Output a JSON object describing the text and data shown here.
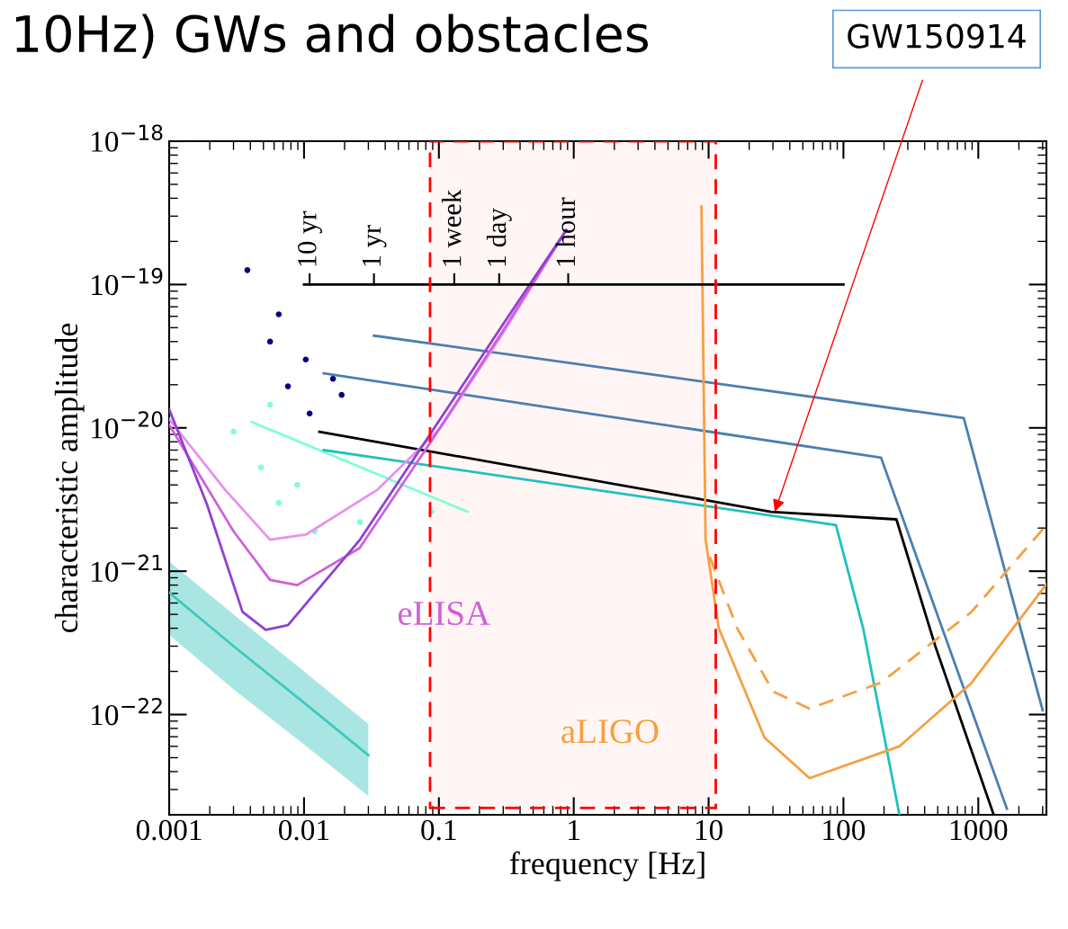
{
  "chart_data": {
    "type": "line",
    "title": "10Hz) GWs and obstacles",
    "xlabel": "frequency [Hz]",
    "ylabel": "characteristic amplitude",
    "log": "xy",
    "xlim": [
      0.001,
      3200
    ],
    "ylim": [
      2e-23,
      1e-18
    ],
    "xticks": [
      0.001,
      0.01,
      0.1,
      1,
      10,
      100,
      1000
    ],
    "yticks": [
      {
        "value": 1e-18,
        "label": "10$^{−18}$"
      },
      {
        "value": 1e-19,
        "label": "10$^{−19}$"
      },
      {
        "value": 1e-20,
        "label": "10$^{−20}$"
      },
      {
        "value": 1e-21,
        "label": "10$^{−21}$"
      },
      {
        "value": 1e-22,
        "label": "10$^{−22}$"
      }
    ],
    "grid": false,
    "series": [
      {
        "type": "scatter",
        "color": "#7fffd4",
        "x": [
          0.003,
          0.0048,
          0.0065,
          0.012,
          0.0056,
          0.0089,
          0.026,
          0.088
        ],
        "values": [
          9.4e-21,
          5.3e-21,
          3e-21,
          1.9e-21,
          1.45e-20,
          4e-21,
          2.2e-21,
          2.6e-21
        ]
      },
      {
        "type": "scatter",
        "color": "#000080",
        "x": [
          0.0038,
          0.0065,
          0.0103,
          0.0076,
          0.0164,
          0.011,
          0.019,
          0.0056
        ],
        "values": [
          1.26e-19,
          6.2e-20,
          3e-20,
          1.95e-20,
          2.2e-20,
          1.26e-20,
          1.7e-20,
          4e-20
        ]
      },
      {
        "color": "#7fffd4",
        "x": [
          0.0041,
          0.163
        ],
        "values": [
          1.1e-20,
          2.6e-21
        ]
      },
      {
        "color": "#20c0c0",
        "x": [
          0.014,
          88,
          140,
          260
        ],
        "values": [
          7e-21,
          2.1e-21,
          4e-22,
          2e-23
        ]
      },
      {
        "color": "#4a7fb0",
        "x": [
          0.014,
          190,
          1630
        ],
        "values": [
          2.4e-20,
          6.2e-21,
          2.2e-23
        ]
      },
      {
        "color": "#4a7fb0",
        "x": [
          0.033,
          780,
          3000
        ],
        "values": [
          4.4e-20,
          1.17e-20,
          1.07e-22
        ]
      },
      {
        "color": "#000000",
        "x": [
          0.013,
          29,
          247,
          480,
          1300
        ],
        "values": [
          9.4e-21,
          2.6e-21,
          2.3e-21,
          3e-22,
          2e-23
        ]
      },
      {
        "color": "#40c8c0",
        "x": [
          0.001,
          0.003,
          0.01,
          0.03
        ],
        "values": [
          7.1e-22,
          3e-22,
          1.21e-22,
          5.2e-23
        ],
        "lower": [
          3.6e-22,
          1.5e-22,
          6.2e-23,
          2.7e-23
        ],
        "upper": [
          1.17e-21,
          5e-22,
          2e-22,
          8.6e-23
        ]
      },
      {
        "color": "#e890f0",
        "x": [
          0.001,
          0.0026,
          0.0056,
          0.0103,
          0.035,
          0.103,
          0.3,
          0.88
        ],
        "values": [
          1.15e-20,
          3.7e-21,
          1.66e-21,
          1.8e-21,
          3.7e-21,
          1e-20,
          4.6e-20,
          2.4e-19
        ]
      },
      {
        "name": "eLISA",
        "color": "#d060d8",
        "x": [
          0.001,
          0.003,
          0.0056,
          0.0089,
          0.0258,
          0.088,
          0.3,
          0.88
        ],
        "values": [
          1.05e-20,
          1.9e-21,
          8.7e-22,
          8e-22,
          1.45e-21,
          8.1e-21,
          4.8e-20,
          2.4e-19
        ]
      },
      {
        "color": "#9040d0",
        "x": [
          0.001,
          0.0019,
          0.0035,
          0.0052,
          0.0076,
          0.026,
          0.088,
          0.3,
          0.88
        ],
        "values": [
          1.35e-20,
          2.95e-21,
          5.2e-22,
          3.9e-22,
          4.2e-22,
          1.66e-21,
          9.3e-21,
          5.3e-20,
          2.4e-19
        ]
      },
      {
        "name": "aLIGO",
        "color": "#f5a040",
        "x": [
          8.85,
          9.5,
          11.9,
          26,
          56,
          260,
          890,
          3200
        ],
        "values": [
          3.5e-19,
          1.66e-21,
          4e-22,
          6.9e-23,
          3.6e-23,
          6e-23,
          1.66e-22,
          8.1e-22
        ]
      },
      {
        "color": "#f5a040",
        "line_style": "dashed",
        "x": [
          10.2,
          16.3,
          30,
          56,
          190,
          890,
          3200
        ],
        "values": [
          1.26e-21,
          4e-22,
          1.45e-22,
          1.1e-22,
          1.67e-22,
          5.2e-22,
          2.1e-21
        ]
      },
      {
        "color": "#000000",
        "x": [
          0.01,
          100
        ],
        "values": [
          1e-19,
          1e-19
        ]
      }
    ],
    "bands": [
      {
        "axis": "x",
        "from": 0.086,
        "to": 11.3,
        "color": "#ff0000"
      }
    ],
    "annotations": [
      {
        "text": "10 yr",
        "x": 0.011,
        "y": 1e-19
      },
      {
        "text": "1 yr",
        "x": 0.033,
        "y": 1e-19
      },
      {
        "text": "1 week",
        "x": 0.13,
        "y": 1e-19
      },
      {
        "text": "1 day",
        "x": 0.28,
        "y": 1e-19
      },
      {
        "text": "1 hour",
        "x": 0.91,
        "y": 1e-19
      },
      {
        "text": "GW150914",
        "x": 31,
        "y": 2.6e-21
      }
    ]
  }
}
